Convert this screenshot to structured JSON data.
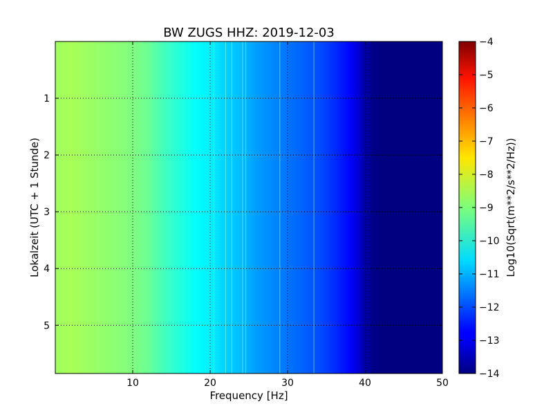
{
  "chart_data": {
    "type": "heatmap",
    "title": "BW ZUGS HHZ: 2019-12-03",
    "xlabel": "Frequency [Hz]",
    "ylabel": "Lokalzeit (UTC + 1 Stunde)",
    "xlim": [
      0,
      50
    ],
    "ylim": [
      5.85,
      0
    ],
    "x_ticks": [
      10,
      20,
      30,
      40,
      50
    ],
    "y_ticks": [
      1,
      2,
      3,
      4,
      5
    ],
    "grid": true,
    "colormap": "jet",
    "colorbar": {
      "label": "Log10(Sqrt(m**2/s**2/Hz))",
      "range": [
        -14,
        -4
      ],
      "ticks": [
        -4,
        -5,
        -6,
        -7,
        -8,
        -9,
        -10,
        -11,
        -12,
        -13,
        -14
      ]
    },
    "frequency_profile": {
      "frequency_hz": [
        0,
        2,
        4,
        6,
        8,
        10,
        12,
        14,
        16,
        18,
        20,
        22,
        24,
        26,
        28,
        30,
        32,
        34,
        36,
        38,
        39,
        40,
        41,
        42,
        44,
        46,
        48,
        50
      ],
      "log10_amplitude": [
        -8.7,
        -8.6,
        -8.7,
        -8.8,
        -8.9,
        -9.0,
        -9.2,
        -9.6,
        -9.9,
        -10.2,
        -10.4,
        -10.7,
        -10.9,
        -11.2,
        -11.4,
        -11.6,
        -11.8,
        -12.0,
        -12.3,
        -12.7,
        -13.1,
        -13.6,
        -13.9,
        -14.0,
        -14.0,
        -14.0,
        -14.0,
        -14.0
      ]
    },
    "spectral_lines_hz": [
      20.5,
      22.0,
      22.8,
      24.2,
      24.6,
      29.0,
      33.4
    ]
  }
}
